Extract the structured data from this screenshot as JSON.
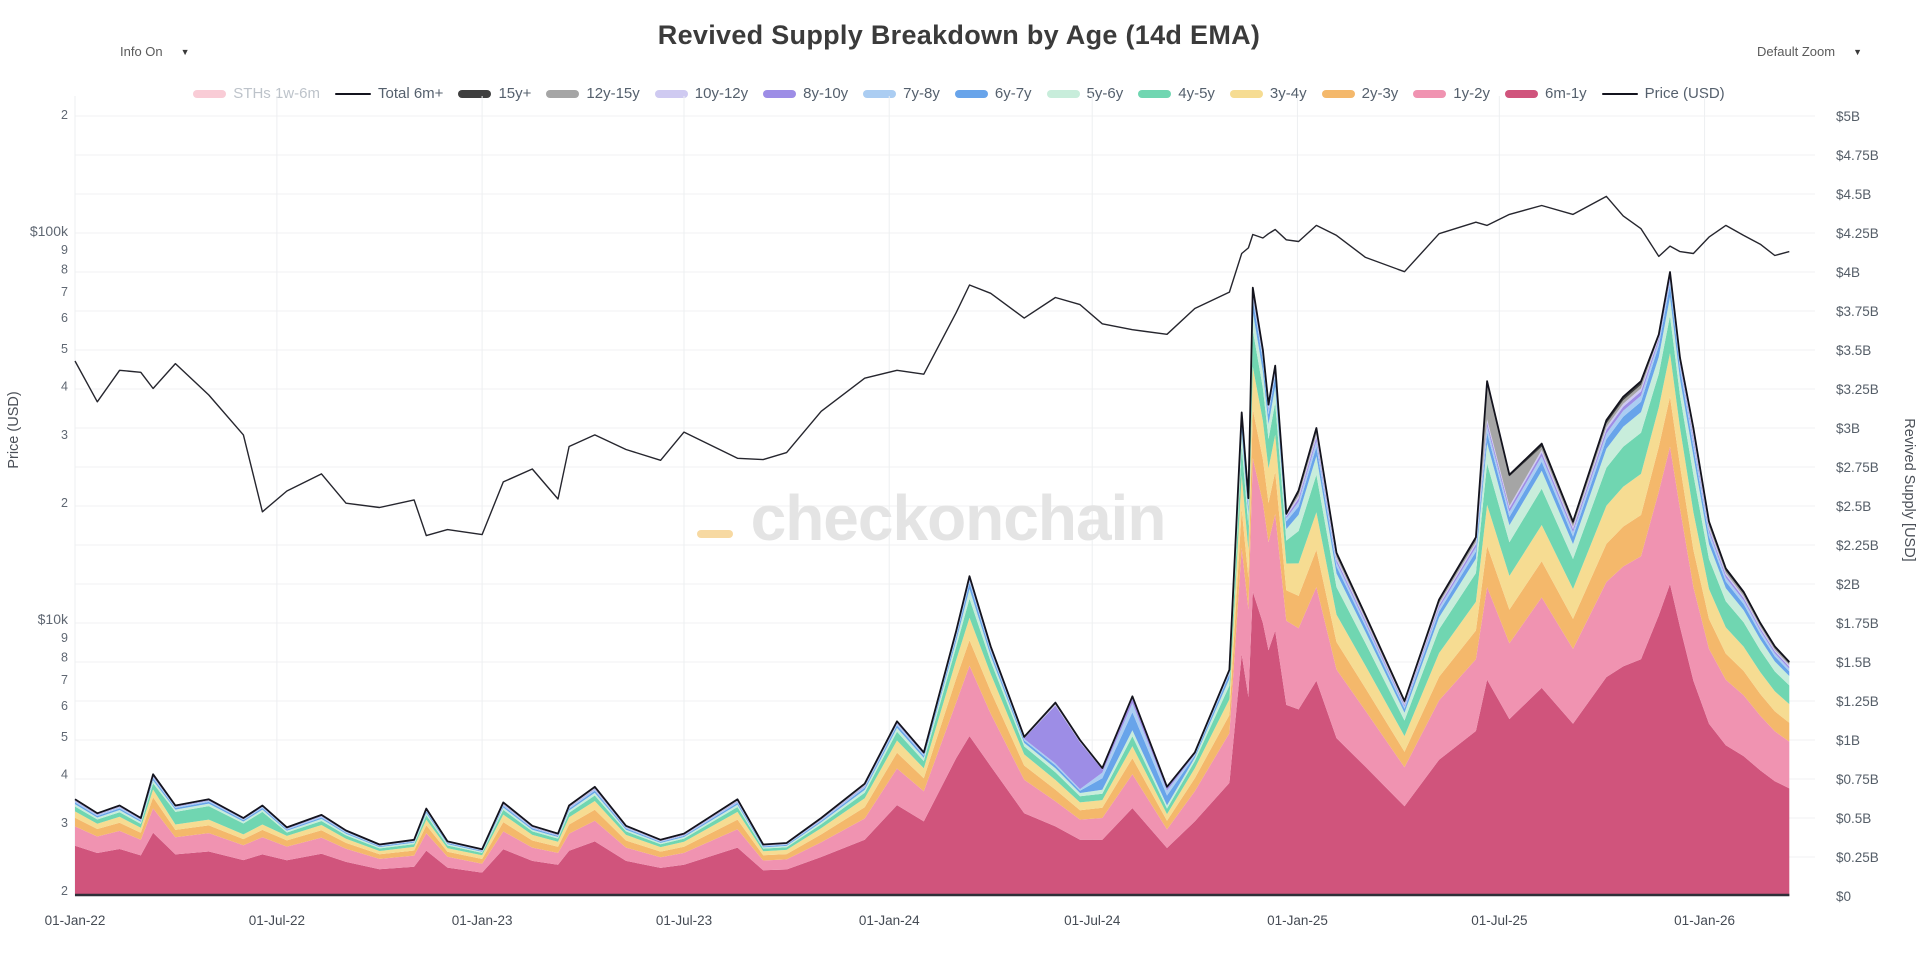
{
  "header": {
    "title": "Revived Supply Breakdown by Age (14d EMA)"
  },
  "controls": {
    "info": {
      "label": "Info On",
      "arrow": "▼"
    },
    "zoom": {
      "label": "Default Zoom",
      "arrow": "▼"
    }
  },
  "watermark": {
    "text": "checkonchain",
    "text_color": "#e4e4e4",
    "dash_color": "#f7d9a2"
  },
  "legend": {
    "items": [
      {
        "label": "STHs 1w-6m",
        "type": "band",
        "color": "#f9ccd6",
        "active": false
      },
      {
        "label": "Total 6m+",
        "type": "line",
        "color": "#14141e",
        "active": true
      },
      {
        "label": "15y+",
        "type": "band",
        "color": "#3f3f3f",
        "active": true
      },
      {
        "label": "12y-15y",
        "type": "band",
        "color": "#a5a5a5",
        "active": true
      },
      {
        "label": "10y-12y",
        "type": "band",
        "color": "#cfcaf1",
        "active": true
      },
      {
        "label": "8y-10y",
        "type": "band",
        "color": "#9d8de6",
        "active": true
      },
      {
        "label": "7y-8y",
        "type": "band",
        "color": "#abcdf2",
        "active": true
      },
      {
        "label": "6y-7y",
        "type": "band",
        "color": "#68a4ea",
        "active": true
      },
      {
        "label": "5y-6y",
        "type": "band",
        "color": "#c8eddb",
        "active": true
      },
      {
        "label": "4y-5y",
        "type": "band",
        "color": "#70d6b1",
        "active": true
      },
      {
        "label": "3y-4y",
        "type": "band",
        "color": "#f6dc92",
        "active": true
      },
      {
        "label": "2y-3y",
        "type": "band",
        "color": "#f4b86b",
        "active": true
      },
      {
        "label": "1y-2y",
        "type": "band",
        "color": "#f093b1",
        "active": true
      },
      {
        "label": "6m-1y",
        "type": "band",
        "color": "#d0547c",
        "active": true
      },
      {
        "label": "Price (USD)",
        "type": "line",
        "color": "#14141e",
        "active": true
      }
    ]
  },
  "axes": {
    "price_axis": {
      "title": "Price (USD)",
      "scale": "log",
      "ticks": [
        {
          "label": "2",
          "value": 200000
        },
        {
          "label": "$100k",
          "value": 100000,
          "major": true
        },
        {
          "label": "9",
          "value": 90000
        },
        {
          "label": "8",
          "value": 80000
        },
        {
          "label": "7",
          "value": 70000
        },
        {
          "label": "6",
          "value": 60000
        },
        {
          "label": "5",
          "value": 50000
        },
        {
          "label": "4",
          "value": 40000
        },
        {
          "label": "3",
          "value": 30000
        },
        {
          "label": "2",
          "value": 20000
        },
        {
          "label": "$10k",
          "value": 10000,
          "major": true
        },
        {
          "label": "9",
          "value": 9000
        },
        {
          "label": "8",
          "value": 8000
        },
        {
          "label": "7",
          "value": 7000
        },
        {
          "label": "6",
          "value": 6000
        },
        {
          "label": "5",
          "value": 5000
        },
        {
          "label": "4",
          "value": 4000
        },
        {
          "label": "3",
          "value": 3000
        },
        {
          "label": "2",
          "value": 2000
        }
      ]
    },
    "supply_axis": {
      "title": "Revived Supply [USD]",
      "ticks": [
        {
          "label": "$0",
          "value": 0
        },
        {
          "label": "$0.25B",
          "value": 0.25
        },
        {
          "label": "$0.5B",
          "value": 0.5
        },
        {
          "label": "$0.75B",
          "value": 0.75
        },
        {
          "label": "$1B",
          "value": 1
        },
        {
          "label": "$1.25B",
          "value": 1.25
        },
        {
          "label": "$1.5B",
          "value": 1.5
        },
        {
          "label": "$1.75B",
          "value": 1.75
        },
        {
          "label": "$2B",
          "value": 2
        },
        {
          "label": "$2.25B",
          "value": 2.25
        },
        {
          "label": "$2.5B",
          "value": 2.5
        },
        {
          "label": "$2.75B",
          "value": 2.75
        },
        {
          "label": "$3B",
          "value": 3
        },
        {
          "label": "$3.25B",
          "value": 3.25
        },
        {
          "label": "$3.5B",
          "value": 3.5
        },
        {
          "label": "$3.75B",
          "value": 3.75
        },
        {
          "label": "$4B",
          "value": 4
        },
        {
          "label": "$4.25B",
          "value": 4.25
        },
        {
          "label": "$4.5B",
          "value": 4.5
        },
        {
          "label": "$4.75B",
          "value": 4.75
        },
        {
          "label": "$5B",
          "value": 5
        }
      ]
    },
    "x_axis": {
      "range": [
        "2022-01-01",
        "2026-04-10"
      ],
      "ticks": [
        {
          "label": "01-Jan-22",
          "date": "2022-01-01"
        },
        {
          "label": "01-Jul-22",
          "date": "2022-07-01"
        },
        {
          "label": "01-Jan-23",
          "date": "2023-01-01"
        },
        {
          "label": "01-Jul-23",
          "date": "2023-07-01"
        },
        {
          "label": "01-Jan-24",
          "date": "2024-01-01"
        },
        {
          "label": "01-Jul-24",
          "date": "2024-07-01"
        },
        {
          "label": "01-Jan-25",
          "date": "2025-01-01"
        },
        {
          "label": "01-Jul-25",
          "date": "2025-07-01"
        },
        {
          "label": "01-Jan-26",
          "date": "2026-01-01"
        }
      ]
    }
  },
  "chart_data": {
    "type": "area",
    "stacked": true,
    "title": "Revived Supply Breakdown by Age (14d EMA)",
    "x_dates": [
      "2022-01-01",
      "2022-01-21",
      "2022-02-10",
      "2022-03-01",
      "2022-03-12",
      "2022-04-01",
      "2022-05-01",
      "2022-06-01",
      "2022-06-18",
      "2022-07-10",
      "2022-08-10",
      "2022-09-01",
      "2022-10-01",
      "2022-11-01",
      "2022-11-12",
      "2022-12-01",
      "2023-01-01",
      "2023-01-20",
      "2023-02-15",
      "2023-03-10",
      "2023-03-20",
      "2023-04-12",
      "2023-05-10",
      "2023-06-10",
      "2023-07-01",
      "2023-08-18",
      "2023-09-10",
      "2023-10-01",
      "2023-11-01",
      "2023-12-10",
      "2024-01-08",
      "2024-02-01",
      "2024-03-01",
      "2024-03-13",
      "2024-04-01",
      "2024-05-01",
      "2024-05-29",
      "2024-06-20",
      "2024-07-10",
      "2024-08-06",
      "2024-09-06",
      "2024-10-01",
      "2024-11-01",
      "2024-11-12",
      "2024-11-18",
      "2024-11-22",
      "2024-12-01",
      "2024-12-06",
      "2024-12-12",
      "2024-12-22",
      "2025-01-02",
      "2025-01-18",
      "2025-02-05",
      "2025-03-03",
      "2025-04-07",
      "2025-05-08",
      "2025-06-10",
      "2025-06-20",
      "2025-07-10",
      "2025-08-08",
      "2025-09-05",
      "2025-10-05",
      "2025-10-20",
      "2025-11-05",
      "2025-11-21",
      "2025-12-01",
      "2025-12-10",
      "2025-12-22",
      "2026-01-05",
      "2026-01-20",
      "2026-02-05",
      "2026-02-20",
      "2026-03-05",
      "2026-03-18"
    ],
    "total_6m_plus_busd": [
      0.62,
      0.53,
      0.58,
      0.5,
      0.78,
      0.58,
      0.62,
      0.5,
      0.58,
      0.44,
      0.52,
      0.42,
      0.33,
      0.36,
      0.56,
      0.35,
      0.3,
      0.6,
      0.45,
      0.4,
      0.58,
      0.7,
      0.45,
      0.36,
      0.4,
      0.62,
      0.33,
      0.34,
      0.5,
      0.72,
      1.12,
      0.92,
      1.7,
      2.05,
      1.6,
      1.02,
      1.24,
      1.0,
      0.82,
      1.28,
      0.7,
      0.92,
      1.45,
      3.1,
      2.55,
      3.9,
      3.5,
      3.15,
      3.4,
      2.45,
      2.6,
      3.0,
      2.2,
      1.8,
      1.25,
      1.9,
      2.3,
      3.3,
      2.7,
      2.9,
      2.4,
      3.05,
      3.2,
      3.3,
      3.6,
      4.0,
      3.45,
      3.0,
      2.4,
      2.1,
      1.95,
      1.75,
      1.6,
      1.5
    ],
    "price_usd": [
      46500,
      36500,
      44000,
      43500,
      39500,
      45800,
      38000,
      30000,
      19000,
      21500,
      23800,
      20000,
      19500,
      20400,
      16500,
      17100,
      16600,
      22700,
      24500,
      20500,
      28000,
      30000,
      27500,
      25800,
      30500,
      26100,
      25900,
      27000,
      34500,
      42000,
      44000,
      43000,
      62000,
      73000,
      69500,
      60000,
      67800,
      65000,
      58000,
      56000,
      54500,
      63500,
      70000,
      88000,
      91000,
      98500,
      96500,
      99000,
      101500,
      95500,
      94500,
      104000,
      98000,
      86000,
      79000,
      99000,
      106000,
      104000,
      111000,
      117000,
      111000,
      123500,
      110000,
      102000,
      86500,
      92000,
      89000,
      88000,
      97000,
      104000,
      98000,
      93000,
      87000,
      89000
    ],
    "bands_bottom_to_top": [
      {
        "name": "6m-1y",
        "color": "#d0547c"
      },
      {
        "name": "1y-2y",
        "color": "#f093b1"
      },
      {
        "name": "2y-3y",
        "color": "#f4b86b"
      },
      {
        "name": "3y-4y",
        "color": "#f6dc92"
      },
      {
        "name": "4y-5y",
        "color": "#70d6b1"
      },
      {
        "name": "5y-6y",
        "color": "#c8eddb"
      },
      {
        "name": "6y-7y",
        "color": "#68a4ea"
      },
      {
        "name": "7y-8y",
        "color": "#abcdf2"
      },
      {
        "name": "8y-10y",
        "color": "#9d8de6"
      },
      {
        "name": "10y-12y",
        "color": "#cfcaf1"
      },
      {
        "name": "12y-15y",
        "color": "#a5a5a5"
      },
      {
        "name": "15y+",
        "color": "#3f3f3f"
      }
    ],
    "composition_profiles": {
      "A": [
        0.52,
        0.2,
        0.09,
        0.065,
        0.05,
        0.025,
        0.018,
        0.012,
        0.006,
        0.004,
        0.005,
        0.005
      ],
      "B": [
        0.46,
        0.19,
        0.08,
        0.06,
        0.14,
        0.025,
        0.018,
        0.012,
        0.006,
        0.004,
        0.0025,
        0.0025
      ],
      "C": [
        0.5,
        0.19,
        0.1,
        0.08,
        0.05,
        0.025,
        0.018,
        0.012,
        0.006,
        0.004,
        0.0075,
        0.0075
      ],
      "D": [
        0.52,
        0.21,
        0.09,
        0.07,
        0.05,
        0.022,
        0.015,
        0.01,
        0.005,
        0.003,
        0.0025,
        0.0025
      ],
      "E": [
        0.36,
        0.13,
        0.06,
        0.05,
        0.04,
        0.02,
        0.015,
        0.01,
        0.3,
        0.005,
        0.005,
        0.005
      ],
      "F": [
        0.44,
        0.17,
        0.08,
        0.06,
        0.05,
        0.03,
        0.09,
        0.045,
        0.025,
        0.004,
        0.003,
        0.003
      ],
      "G": [
        0.5,
        0.22,
        0.08,
        0.07,
        0.06,
        0.03,
        0.02,
        0.008,
        0.005,
        0.003,
        0.002,
        0.002
      ],
      "H": [
        0.46,
        0.2,
        0.08,
        0.08,
        0.08,
        0.04,
        0.02,
        0.012,
        0.008,
        0.006,
        0.007,
        0.007
      ],
      "I": [
        0.42,
        0.18,
        0.08,
        0.08,
        0.08,
        0.04,
        0.02,
        0.012,
        0.008,
        0.006,
        0.07,
        0.004
      ]
    },
    "composition": [
      "A",
      "A",
      "A",
      "A",
      "A",
      "B",
      "B",
      "B",
      "B",
      "A",
      "A",
      "A",
      "A",
      "A",
      "A",
      "A",
      "C",
      "C",
      "C",
      "C",
      "C",
      "C",
      "C",
      "C",
      "C",
      "C",
      "C",
      "C",
      "C",
      "C",
      "D",
      "D",
      "D",
      "G",
      "D",
      "D",
      "E",
      "E",
      "F",
      "F",
      "F",
      "D",
      "G",
      "G",
      "G",
      "G",
      "G",
      "G",
      "G",
      "G",
      "H",
      "H",
      "H",
      "H",
      "H",
      "H",
      "H",
      "I",
      "I",
      "H",
      "H",
      "H",
      "H",
      "H",
      "G",
      "G",
      "G",
      "H",
      "H",
      "H",
      "H",
      "H",
      "H",
      "H"
    ],
    "total_line": {
      "name": "Total 6m+",
      "color": "#14141e"
    },
    "price_line": {
      "name": "Price (USD)",
      "color": "#26262e"
    },
    "hidden_series": [
      {
        "name": "STHs 1w-6m",
        "color": "#f9ccd6"
      }
    ],
    "grid": true,
    "legend_position": "top"
  }
}
